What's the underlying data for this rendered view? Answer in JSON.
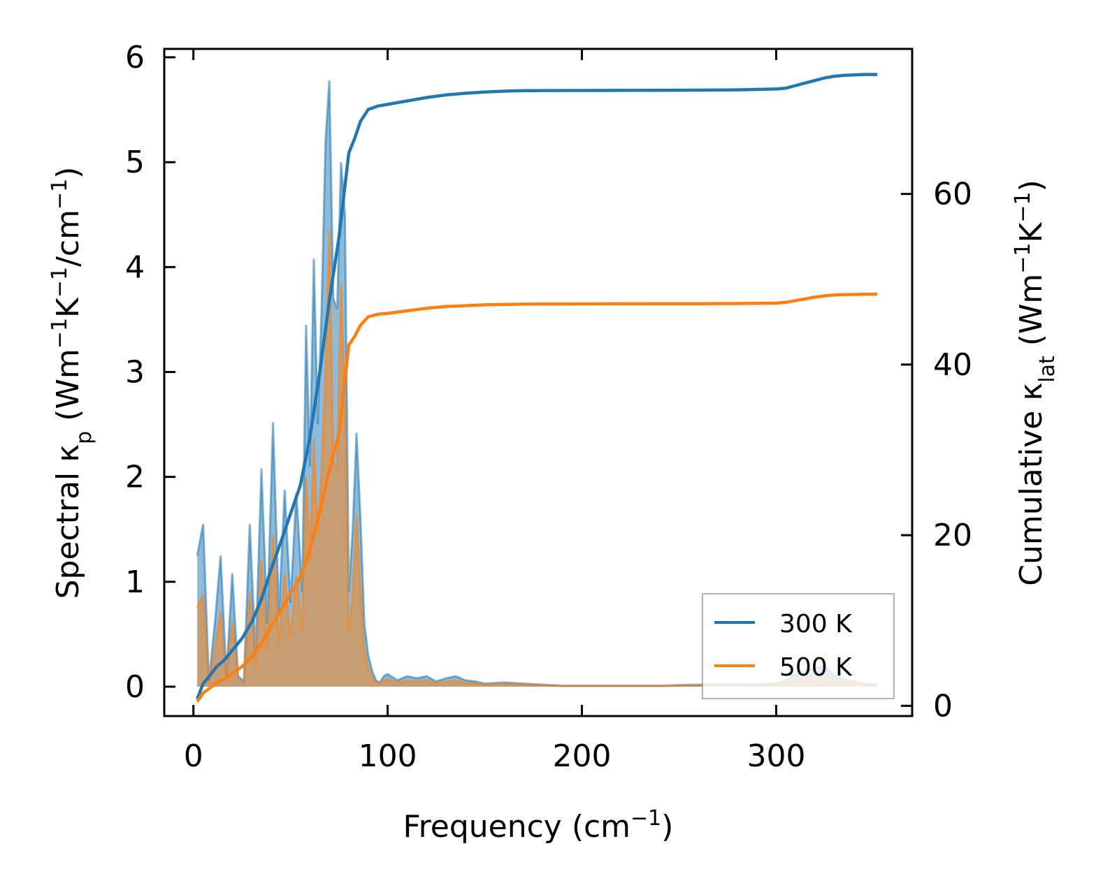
{
  "chart_data": {
    "type": "line",
    "xlabel": {
      "main": "Frequency (cm",
      "sup": "−1",
      "tail": ")"
    },
    "ylabel_left": {
      "a": "Spectral κ",
      "sub": "p",
      "b": " (Wm",
      "sup1": "−1",
      "c": "K",
      "sup2": "−1",
      "d": "/cm",
      "sup3": "−1",
      "e": ")"
    },
    "ylabel_right": {
      "a": "Cumulative κ",
      "sub": "lat",
      "b": " (Wm",
      "sup1": "−1",
      "c": "K",
      "sup2": "−1",
      "d": ")"
    },
    "xlim": [
      -15,
      370
    ],
    "ylim_left": [
      -0.28,
      6.08
    ],
    "ylim_right": [
      -1.2,
      77.0
    ],
    "xticks": [
      0,
      100,
      200,
      300
    ],
    "xtick_labels": [
      "0",
      "100",
      "200",
      "300"
    ],
    "yticks_left": [
      0,
      1,
      2,
      3,
      4,
      5,
      6
    ],
    "ytick_labels_left": [
      "0",
      "1",
      "2",
      "3",
      "4",
      "5",
      "6"
    ],
    "yticks_right": [
      0,
      20,
      40,
      60
    ],
    "ytick_labels_right": [
      "0",
      "20",
      "40",
      "60"
    ],
    "legend": {
      "position": "lower-right",
      "entries": [
        {
          "label": "300 K",
          "color": "#1f77b4"
        },
        {
          "label": "500 K",
          "color": "#ff7f0e"
        }
      ]
    },
    "series": [
      {
        "name": "300 K",
        "color": "#1f77b4",
        "spectral_x": [
          2,
          5,
          8,
          11,
          14,
          17,
          20,
          23,
          26,
          29,
          32,
          35,
          38,
          41,
          44,
          47,
          50,
          53,
          56,
          58,
          60,
          62,
          64,
          66,
          68,
          70,
          72,
          74,
          76,
          78,
          80,
          82,
          84,
          86,
          88,
          90,
          92,
          94,
          96,
          98,
          100,
          105,
          110,
          115,
          120,
          125,
          130,
          135,
          140,
          145,
          150,
          160,
          170,
          180,
          190,
          200,
          220,
          240,
          260,
          280,
          300,
          305,
          310,
          315,
          320,
          325,
          330,
          335,
          340,
          345,
          352
        ],
        "spectral_y": [
          1.25,
          1.55,
          0.05,
          0.6,
          1.25,
          0.1,
          1.08,
          0.1,
          0.05,
          1.55,
          0.3,
          2.08,
          0.6,
          2.52,
          0.7,
          1.88,
          0.8,
          1.85,
          0.9,
          3.45,
          2.1,
          4.08,
          2.5,
          3.6,
          5.2,
          5.78,
          3.7,
          3.6,
          5.0,
          4.5,
          0.9,
          1.5,
          2.42,
          1.6,
          0.6,
          0.3,
          0.15,
          0.06,
          0.04,
          0.1,
          0.12,
          0.06,
          0.1,
          0.08,
          0.1,
          0.05,
          0.08,
          0.1,
          0.06,
          0.05,
          0.03,
          0.04,
          0.03,
          0.02,
          0.01,
          0.01,
          0.01,
          0.01,
          0.02,
          0.02,
          0.03,
          0.06,
          0.12,
          0.15,
          0.18,
          0.2,
          0.1,
          0.07,
          0.05,
          0.03,
          0.02
        ],
        "cumulative_x": [
          2,
          5,
          8,
          12,
          16,
          20,
          25,
          30,
          35,
          40,
          45,
          50,
          55,
          60,
          65,
          70,
          75,
          80,
          83,
          86,
          90,
          95,
          100,
          110,
          120,
          130,
          140,
          150,
          160,
          170,
          180,
          200,
          220,
          240,
          260,
          280,
          300,
          305,
          310,
          315,
          320,
          325,
          330,
          335,
          340,
          345,
          352
        ],
        "cumulative_y": [
          0.8,
          2.6,
          3.4,
          4.6,
          5.4,
          6.5,
          7.9,
          9.8,
          12.5,
          16.0,
          19.2,
          22.5,
          25.8,
          31.5,
          39.0,
          47.5,
          55.0,
          64.8,
          66.5,
          68.5,
          69.9,
          70.3,
          70.5,
          70.9,
          71.3,
          71.6,
          71.8,
          71.95,
          72.05,
          72.1,
          72.12,
          72.13,
          72.14,
          72.15,
          72.17,
          72.2,
          72.3,
          72.4,
          72.7,
          73.0,
          73.3,
          73.6,
          73.8,
          73.9,
          73.95,
          74.0,
          74.0
        ]
      },
      {
        "name": "500 K",
        "color": "#ff7f0e",
        "spectral_x": [
          2,
          5,
          8,
          11,
          14,
          17,
          20,
          23,
          26,
          29,
          32,
          35,
          38,
          41,
          44,
          47,
          50,
          53,
          56,
          58,
          60,
          62,
          64,
          66,
          68,
          70,
          72,
          74,
          76,
          78,
          80,
          82,
          84,
          86,
          88,
          90,
          92,
          94,
          96,
          98,
          100,
          105,
          110,
          115,
          120,
          125,
          130,
          135,
          140,
          145,
          150,
          160,
          170,
          180,
          190,
          200,
          220,
          240,
          260,
          280,
          300,
          305,
          310,
          315,
          320,
          325,
          330,
          335,
          340,
          345,
          352
        ],
        "spectral_y": [
          0.75,
          0.88,
          0.03,
          0.35,
          0.72,
          0.06,
          0.62,
          0.06,
          0.03,
          0.9,
          0.18,
          1.2,
          0.35,
          1.45,
          0.4,
          1.08,
          0.46,
          1.06,
          0.52,
          2.0,
          1.22,
          2.36,
          1.45,
          2.08,
          3.0,
          4.35,
          2.14,
          2.08,
          3.85,
          2.6,
          0.52,
          0.87,
          1.65,
          0.93,
          0.35,
          0.17,
          0.09,
          0.04,
          0.03,
          0.06,
          0.07,
          0.035,
          0.06,
          0.05,
          0.06,
          0.03,
          0.05,
          0.06,
          0.035,
          0.03,
          0.02,
          0.025,
          0.02,
          0.012,
          0.006,
          0.006,
          0.006,
          0.006,
          0.012,
          0.012,
          0.02,
          0.035,
          0.07,
          0.09,
          0.1,
          0.12,
          0.06,
          0.04,
          0.03,
          0.02,
          0.012
        ],
        "cumulative_x": [
          2,
          5,
          8,
          12,
          16,
          20,
          25,
          30,
          35,
          40,
          45,
          50,
          55,
          60,
          65,
          70,
          75,
          80,
          83,
          86,
          90,
          95,
          100,
          110,
          120,
          130,
          140,
          150,
          160,
          170,
          180,
          200,
          220,
          240,
          260,
          280,
          300,
          305,
          310,
          315,
          320,
          325,
          330,
          335,
          340,
          345,
          352
        ],
        "cumulative_y": [
          0.5,
          1.5,
          2.0,
          2.7,
          3.1,
          3.8,
          4.6,
          5.7,
          7.3,
          9.3,
          11.2,
          13.1,
          15.0,
          18.3,
          22.7,
          27.6,
          32.0,
          42.3,
          43.3,
          44.6,
          45.6,
          45.9,
          46.0,
          46.3,
          46.6,
          46.8,
          46.9,
          47.0,
          47.05,
          47.08,
          47.1,
          47.11,
          47.12,
          47.13,
          47.14,
          47.15,
          47.2,
          47.3,
          47.5,
          47.7,
          47.9,
          48.05,
          48.15,
          48.2,
          48.22,
          48.23,
          48.23
        ]
      }
    ]
  }
}
